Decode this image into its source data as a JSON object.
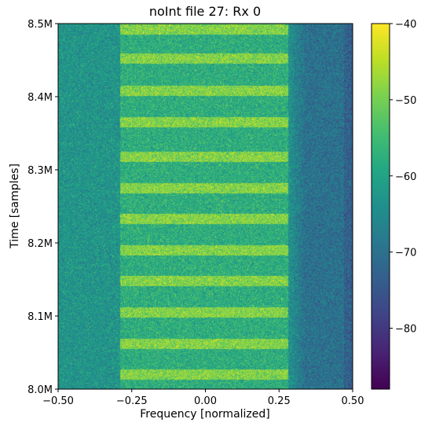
{
  "chart_data": {
    "type": "heatmap",
    "title": "noInt file 27: Rx 0",
    "xlabel": "Frequency [normalized]",
    "ylabel": "Time [samples]",
    "xlim": [
      -0.5,
      0.5
    ],
    "ylim": [
      8000000,
      8500000
    ],
    "x_ticks": [
      {
        "value": -0.5,
        "label": "−0.50"
      },
      {
        "value": -0.25,
        "label": "−0.25"
      },
      {
        "value": 0.0,
        "label": "0.00"
      },
      {
        "value": 0.25,
        "label": "0.25"
      },
      {
        "value": 0.5,
        "label": "0.50"
      }
    ],
    "y_ticks": [
      {
        "value": 8000000,
        "label": "8.0M"
      },
      {
        "value": 8100000,
        "label": "8.1M"
      },
      {
        "value": 8200000,
        "label": "8.2M"
      },
      {
        "value": 8300000,
        "label": "8.3M"
      },
      {
        "value": 8400000,
        "label": "8.4M"
      },
      {
        "value": 8500000,
        "label": "8.5M"
      }
    ],
    "colorbar": {
      "colormap": "viridis",
      "range": [
        -88,
        -40
      ],
      "ticks": [
        {
          "value": -40,
          "label": "−40"
        },
        {
          "value": -50,
          "label": "−50"
        },
        {
          "value": -60,
          "label": "−60"
        },
        {
          "value": -70,
          "label": "−70"
        },
        {
          "value": -80,
          "label": "−80"
        }
      ]
    },
    "signal_band": [
      -0.29,
      0.28
    ],
    "background_level": -63,
    "band_level": -58,
    "burst_level": -49,
    "high_freq_level": -70,
    "burst_times": [
      8020000,
      8062000,
      8105000,
      8148000,
      8190000,
      8233000,
      8275000,
      8318000,
      8365000,
      8408000,
      8452000,
      8492000
    ],
    "burst_duration": 14000,
    "grid": false
  }
}
